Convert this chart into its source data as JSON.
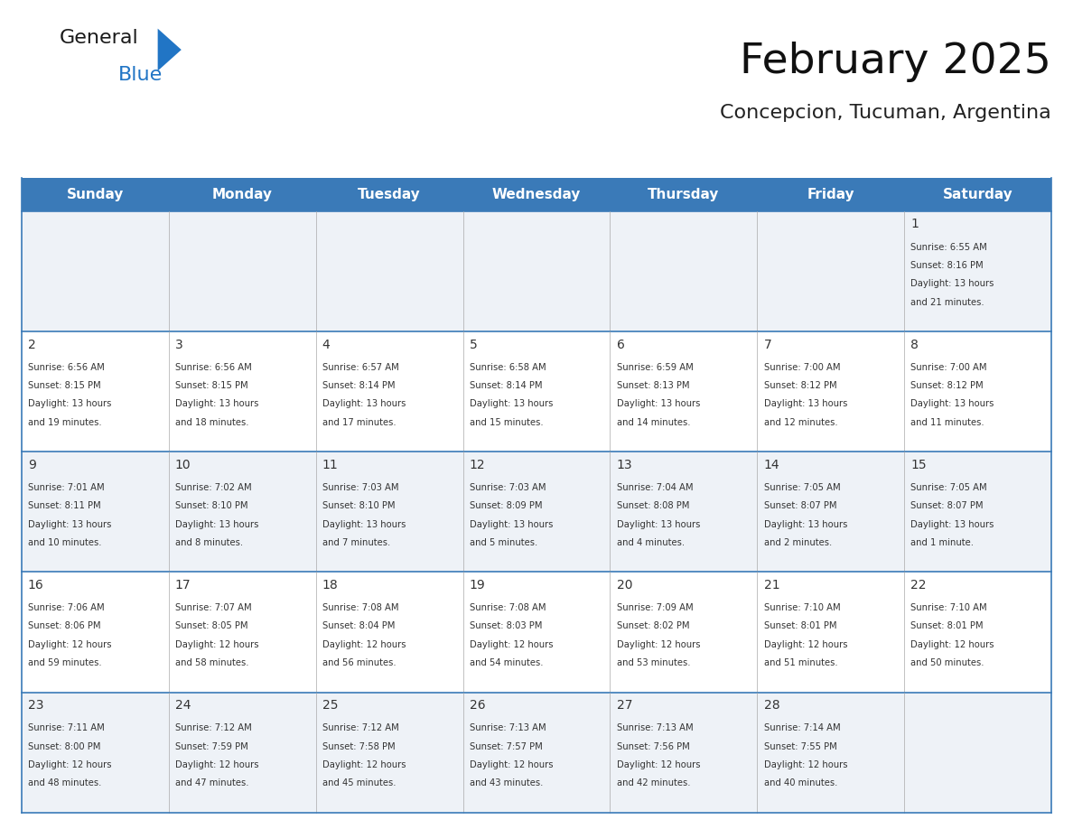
{
  "title": "February 2025",
  "subtitle": "Concepcion, Tucuman, Argentina",
  "header_bg": "#3a7ab8",
  "header_text": "#ffffff",
  "cell_bg_odd": "#eef2f7",
  "cell_bg_even": "#ffffff",
  "line_color": "#3a7ab8",
  "text_color": "#333333",
  "days_of_week": [
    "Sunday",
    "Monday",
    "Tuesday",
    "Wednesday",
    "Thursday",
    "Friday",
    "Saturday"
  ],
  "weeks": [
    [
      {
        "day": null,
        "sunrise": null,
        "sunset": null,
        "daylight": null
      },
      {
        "day": null,
        "sunrise": null,
        "sunset": null,
        "daylight": null
      },
      {
        "day": null,
        "sunrise": null,
        "sunset": null,
        "daylight": null
      },
      {
        "day": null,
        "sunrise": null,
        "sunset": null,
        "daylight": null
      },
      {
        "day": null,
        "sunrise": null,
        "sunset": null,
        "daylight": null
      },
      {
        "day": null,
        "sunrise": null,
        "sunset": null,
        "daylight": null
      },
      {
        "day": 1,
        "sunrise": "6:55 AM",
        "sunset": "8:16 PM",
        "daylight": "13 hours\nand 21 minutes."
      }
    ],
    [
      {
        "day": 2,
        "sunrise": "6:56 AM",
        "sunset": "8:15 PM",
        "daylight": "13 hours\nand 19 minutes."
      },
      {
        "day": 3,
        "sunrise": "6:56 AM",
        "sunset": "8:15 PM",
        "daylight": "13 hours\nand 18 minutes."
      },
      {
        "day": 4,
        "sunrise": "6:57 AM",
        "sunset": "8:14 PM",
        "daylight": "13 hours\nand 17 minutes."
      },
      {
        "day": 5,
        "sunrise": "6:58 AM",
        "sunset": "8:14 PM",
        "daylight": "13 hours\nand 15 minutes."
      },
      {
        "day": 6,
        "sunrise": "6:59 AM",
        "sunset": "8:13 PM",
        "daylight": "13 hours\nand 14 minutes."
      },
      {
        "day": 7,
        "sunrise": "7:00 AM",
        "sunset": "8:12 PM",
        "daylight": "13 hours\nand 12 minutes."
      },
      {
        "day": 8,
        "sunrise": "7:00 AM",
        "sunset": "8:12 PM",
        "daylight": "13 hours\nand 11 minutes."
      }
    ],
    [
      {
        "day": 9,
        "sunrise": "7:01 AM",
        "sunset": "8:11 PM",
        "daylight": "13 hours\nand 10 minutes."
      },
      {
        "day": 10,
        "sunrise": "7:02 AM",
        "sunset": "8:10 PM",
        "daylight": "13 hours\nand 8 minutes."
      },
      {
        "day": 11,
        "sunrise": "7:03 AM",
        "sunset": "8:10 PM",
        "daylight": "13 hours\nand 7 minutes."
      },
      {
        "day": 12,
        "sunrise": "7:03 AM",
        "sunset": "8:09 PM",
        "daylight": "13 hours\nand 5 minutes."
      },
      {
        "day": 13,
        "sunrise": "7:04 AM",
        "sunset": "8:08 PM",
        "daylight": "13 hours\nand 4 minutes."
      },
      {
        "day": 14,
        "sunrise": "7:05 AM",
        "sunset": "8:07 PM",
        "daylight": "13 hours\nand 2 minutes."
      },
      {
        "day": 15,
        "sunrise": "7:05 AM",
        "sunset": "8:07 PM",
        "daylight": "13 hours\nand 1 minute."
      }
    ],
    [
      {
        "day": 16,
        "sunrise": "7:06 AM",
        "sunset": "8:06 PM",
        "daylight": "12 hours\nand 59 minutes."
      },
      {
        "day": 17,
        "sunrise": "7:07 AM",
        "sunset": "8:05 PM",
        "daylight": "12 hours\nand 58 minutes."
      },
      {
        "day": 18,
        "sunrise": "7:08 AM",
        "sunset": "8:04 PM",
        "daylight": "12 hours\nand 56 minutes."
      },
      {
        "day": 19,
        "sunrise": "7:08 AM",
        "sunset": "8:03 PM",
        "daylight": "12 hours\nand 54 minutes."
      },
      {
        "day": 20,
        "sunrise": "7:09 AM",
        "sunset": "8:02 PM",
        "daylight": "12 hours\nand 53 minutes."
      },
      {
        "day": 21,
        "sunrise": "7:10 AM",
        "sunset": "8:01 PM",
        "daylight": "12 hours\nand 51 minutes."
      },
      {
        "day": 22,
        "sunrise": "7:10 AM",
        "sunset": "8:01 PM",
        "daylight": "12 hours\nand 50 minutes."
      }
    ],
    [
      {
        "day": 23,
        "sunrise": "7:11 AM",
        "sunset": "8:00 PM",
        "daylight": "12 hours\nand 48 minutes."
      },
      {
        "day": 24,
        "sunrise": "7:12 AM",
        "sunset": "7:59 PM",
        "daylight": "12 hours\nand 47 minutes."
      },
      {
        "day": 25,
        "sunrise": "7:12 AM",
        "sunset": "7:58 PM",
        "daylight": "12 hours\nand 45 minutes."
      },
      {
        "day": 26,
        "sunrise": "7:13 AM",
        "sunset": "7:57 PM",
        "daylight": "12 hours\nand 43 minutes."
      },
      {
        "day": 27,
        "sunrise": "7:13 AM",
        "sunset": "7:56 PM",
        "daylight": "12 hours\nand 42 minutes."
      },
      {
        "day": 28,
        "sunrise": "7:14 AM",
        "sunset": "7:55 PM",
        "daylight": "12 hours\nand 40 minutes."
      },
      {
        "day": null,
        "sunrise": null,
        "sunset": null,
        "daylight": null
      }
    ]
  ],
  "logo_text1": "General",
  "logo_text2": "Blue",
  "logo_color1": "#1a1a1a",
  "logo_color2": "#2175c5",
  "logo_triangle_color": "#2175c5"
}
